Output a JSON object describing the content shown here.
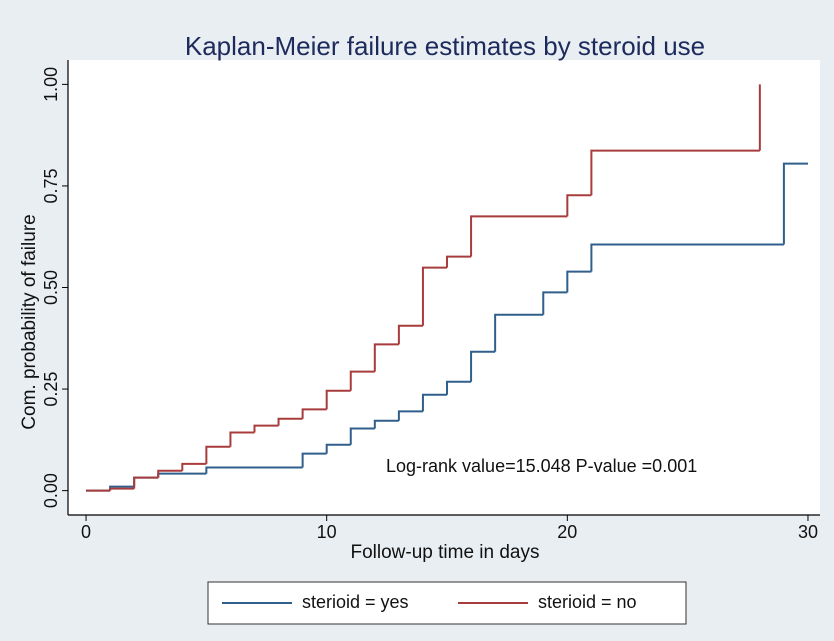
{
  "chart_data": {
    "type": "step",
    "title": "Kaplan-Meier failure estimates by steroid use",
    "xlabel": "Follow-up time in days",
    "ylabel": "Com. probability of failure",
    "annotation": "Log-rank value=15.048    P-value =0.001",
    "xlim": [
      -0.75,
      30.5
    ],
    "ylim": [
      -0.06,
      1.06
    ],
    "xticks": [
      0,
      10,
      20,
      30
    ],
    "yticks": [
      {
        "value": 0,
        "label": "0.00"
      },
      {
        "value": 0.25,
        "label": "0.25"
      },
      {
        "value": 0.5,
        "label": "0.50"
      },
      {
        "value": 0.75,
        "label": "0.75"
      },
      {
        "value": 1,
        "label": "1.00"
      }
    ],
    "grid": false,
    "legend": "bottom",
    "series": [
      {
        "name": "sterioid = yes",
        "color": "#2f5f8a",
        "x": [
          0,
          1,
          2,
          3,
          5,
          9,
          10,
          11,
          12,
          13,
          14,
          15,
          16,
          17,
          19,
          20,
          21,
          29,
          30
        ],
        "values": [
          0,
          0.01,
          0.032,
          0.042,
          0.057,
          0.091,
          0.113,
          0.153,
          0.172,
          0.195,
          0.236,
          0.268,
          0.342,
          0.433,
          0.488,
          0.539,
          0.606,
          0.805,
          0.805
        ]
      },
      {
        "name": "sterioid = no",
        "color": "#a83c3c",
        "x": [
          0,
          1,
          2,
          3,
          4,
          5,
          6,
          7,
          8,
          9,
          10,
          11,
          12,
          13,
          14,
          15,
          16,
          20,
          21,
          28
        ],
        "values": [
          0,
          0.005,
          0.032,
          0.049,
          0.066,
          0.108,
          0.143,
          0.16,
          0.177,
          0.2,
          0.246,
          0.293,
          0.36,
          0.406,
          0.549,
          0.576,
          0.675,
          0.727,
          0.837,
          1
        ]
      }
    ]
  }
}
